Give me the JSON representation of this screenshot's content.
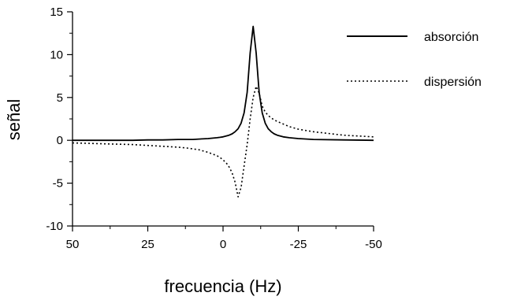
{
  "chart_data": {
    "type": "line",
    "title": "",
    "xlabel": "frecuencia (Hz)",
    "ylabel": "señal",
    "xlim": [
      50,
      -50
    ],
    "ylim": [
      -10,
      15
    ],
    "x_reversed": true,
    "xticks": [
      50,
      25,
      0,
      -25,
      -50
    ],
    "xtick_labels": [
      "50",
      "25",
      "0",
      "-25",
      "-50"
    ],
    "yticks": [
      15,
      10,
      5,
      0,
      -5,
      -10
    ],
    "ytick_labels": [
      "15",
      "10",
      "5",
      "0",
      "-5",
      "-10"
    ],
    "grid": false,
    "legend_position": "top-right",
    "series": [
      {
        "name": "absorción",
        "style": "solid",
        "color": "#000000",
        "x": [
          50,
          40,
          30,
          25,
          20,
          15,
          12,
          10,
          8,
          5,
          2,
          1,
          0,
          -1,
          -2,
          -3,
          -4,
          -5,
          -6,
          -7,
          -8,
          -9,
          -10,
          -11,
          -12,
          -13,
          -14,
          -15,
          -16,
          -17,
          -18,
          -20,
          -22,
          -25,
          -30,
          -40,
          -50
        ],
        "y": [
          0.0,
          0.0,
          0.0,
          0.05,
          0.05,
          0.1,
          0.1,
          0.1,
          0.15,
          0.2,
          0.3,
          0.35,
          0.4,
          0.5,
          0.6,
          0.75,
          1.0,
          1.35,
          2.0,
          3.2,
          5.6,
          10.2,
          13.3,
          10.2,
          5.6,
          3.2,
          2.0,
          1.35,
          1.0,
          0.75,
          0.6,
          0.4,
          0.3,
          0.2,
          0.1,
          0.05,
          0.0
        ]
      },
      {
        "name": "dispersión",
        "style": "dotted",
        "color": "#000000",
        "x": [
          50,
          40,
          30,
          25,
          20,
          15,
          12,
          10,
          8,
          5,
          2,
          1,
          0,
          -1,
          -2,
          -3,
          -4,
          -5,
          -6,
          -7,
          -8,
          -9,
          -10,
          -11,
          -12,
          -13,
          -14,
          -15,
          -16,
          -17,
          -18,
          -20,
          -22,
          -25,
          -30,
          -40,
          -50
        ],
        "y": [
          -0.3,
          -0.4,
          -0.5,
          -0.6,
          -0.7,
          -0.8,
          -0.9,
          -1.0,
          -1.1,
          -1.4,
          -1.8,
          -2.0,
          -2.3,
          -2.6,
          -3.1,
          -3.8,
          -4.9,
          -6.6,
          -5.5,
          -3.0,
          -0.5,
          2.5,
          5.0,
          6.3,
          5.5,
          4.0,
          3.3,
          2.9,
          2.6,
          2.4,
          2.2,
          1.9,
          1.6,
          1.3,
          1.0,
          0.6,
          0.4
        ]
      }
    ]
  }
}
